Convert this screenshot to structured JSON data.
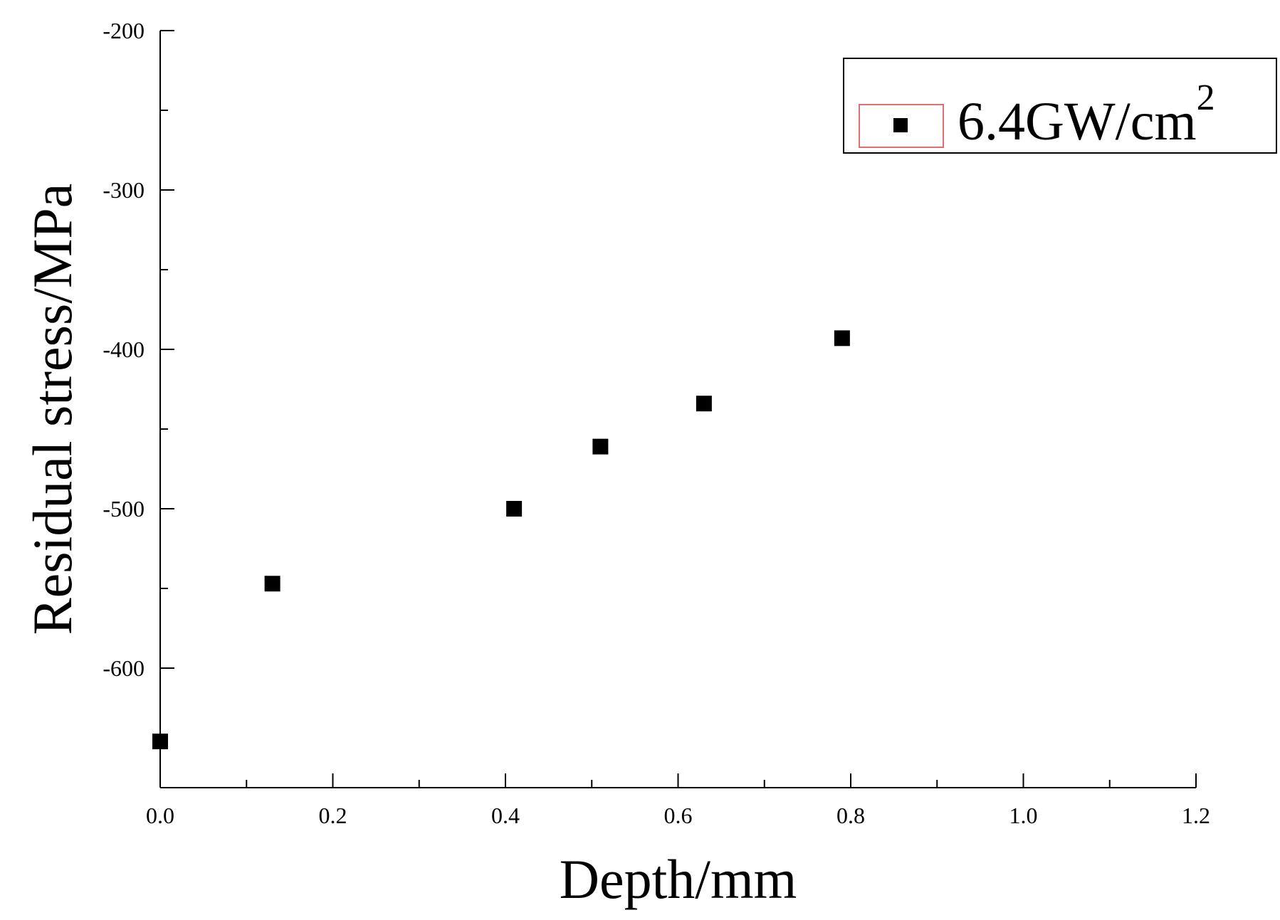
{
  "chart_data": {
    "type": "scatter",
    "title": "",
    "xlabel": "Depth/mm",
    "ylabel": "Residual stress/MPa",
    "xlim": [
      0.0,
      1.2
    ],
    "ylim": [
      -675,
      -200
    ],
    "x_ticks": [
      "0.0",
      "0.2",
      "0.4",
      "0.6",
      "0.8",
      "1.0",
      "1.2"
    ],
    "x_tick_values": [
      0.0,
      0.2,
      0.4,
      0.6,
      0.8,
      1.0,
      1.2
    ],
    "y_ticks": [
      "-200",
      "-300",
      "-400",
      "-500",
      "-600"
    ],
    "y_tick_values": [
      -200,
      -300,
      -400,
      -500,
      -600
    ],
    "grid": false,
    "legend_position": "top-right",
    "series": [
      {
        "name": "6.4GW/cm",
        "name_superscript": "2",
        "marker": "square",
        "color": "#000000",
        "x": [
          0.0,
          0.13,
          0.41,
          0.51,
          0.63,
          0.79
        ],
        "y": [
          -646,
          -547,
          -500,
          -461,
          -434,
          -393
        ]
      }
    ]
  }
}
